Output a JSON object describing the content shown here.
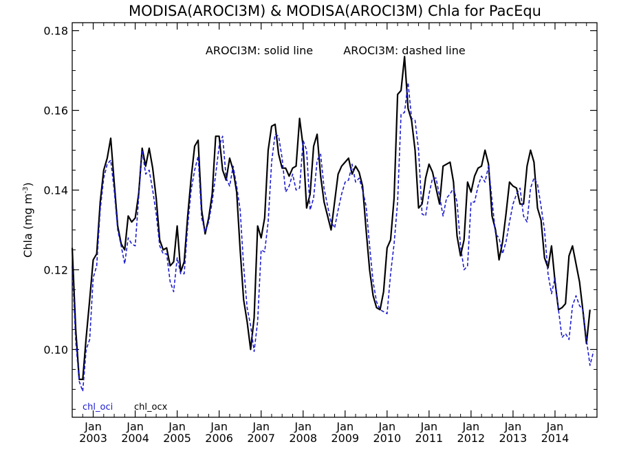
{
  "chart_data": {
    "type": "line",
    "title": "MODISA(AROCI3M) & MODISA(AROCI3M)  Chla for PacEqu",
    "annotation_solid": "AROCI3M: solid line",
    "annotation_dashed": "AROCI3M: dashed line",
    "ylabel_base": "Chla (mg m",
    "ylabel_exp": "-3",
    "ylabel_close": ")",
    "xlabel": "",
    "ylim": [
      0.083,
      0.182
    ],
    "xlim": [
      2002.5,
      2015.0
    ],
    "y_ticks": [
      0.1,
      0.12,
      0.14,
      0.16,
      0.18
    ],
    "y_tick_labels": [
      "0.10",
      "0.12",
      "0.14",
      "0.16",
      "0.18"
    ],
    "x_ticks": [
      {
        "month": "Jan",
        "year": "2003",
        "value": 2003
      },
      {
        "month": "Jan",
        "year": "2004",
        "value": 2004
      },
      {
        "month": "Jan",
        "year": "2005",
        "value": 2005
      },
      {
        "month": "Jan",
        "year": "2006",
        "value": 2006
      },
      {
        "month": "Jan",
        "year": "2007",
        "value": 2007
      },
      {
        "month": "Jan",
        "year": "2008",
        "value": 2008
      },
      {
        "month": "Jan",
        "year": "2009",
        "value": 2009
      },
      {
        "month": "Jan",
        "year": "2010",
        "value": 2010
      },
      {
        "month": "Jan",
        "year": "2011",
        "value": 2011
      },
      {
        "month": "Jan",
        "year": "2012",
        "value": 2012
      },
      {
        "month": "Jan",
        "year": "2013",
        "value": 2013
      },
      {
        "month": "Jan",
        "year": "2014",
        "value": 2014
      }
    ],
    "grid": false,
    "legend": "bottom-left",
    "x_start": "2002-07",
    "series": [
      {
        "name": "chl_oci",
        "color": "#1a1ad0",
        "style": "dashed",
        "values": [
          0.121,
          0.102,
          0.092,
          0.0895,
          0.1,
          0.1025,
          0.118,
          0.121,
          0.135,
          0.143,
          0.1465,
          0.1475,
          0.14,
          0.13,
          0.126,
          0.1215,
          0.128,
          0.1265,
          0.126,
          0.138,
          0.15,
          0.144,
          0.145,
          0.14,
          0.134,
          0.126,
          0.124,
          0.124,
          0.117,
          0.1145,
          0.123,
          0.119,
          0.119,
          0.131,
          0.14,
          0.145,
          0.1485,
          0.133,
          0.1295,
          0.132,
          0.137,
          0.144,
          0.151,
          0.1535,
          0.143,
          0.141,
          0.146,
          0.141,
          0.135,
          0.121,
          0.1105,
          0.106,
          0.0995,
          0.107,
          0.125,
          0.1245,
          0.132,
          0.147,
          0.154,
          0.1535,
          0.148,
          0.1395,
          0.141,
          0.144,
          0.14,
          0.1405,
          0.1525,
          0.15,
          0.135,
          0.138,
          0.1475,
          0.149,
          0.1405,
          0.136,
          0.132,
          0.1305,
          0.135,
          0.139,
          0.142,
          0.1425,
          0.1465,
          0.142,
          0.143,
          0.14,
          0.136,
          0.126,
          0.117,
          0.112,
          0.11,
          0.1095,
          0.109,
          0.119,
          0.1265,
          0.137,
          0.159,
          0.1595,
          0.167,
          0.158,
          0.1575,
          0.15,
          0.134,
          0.1335,
          0.139,
          0.143,
          0.143,
          0.1385,
          0.1335,
          0.138,
          0.139,
          0.1405,
          0.137,
          0.126,
          0.12,
          0.121,
          0.137,
          0.137,
          0.141,
          0.1435,
          0.142,
          0.146,
          0.1375,
          0.129,
          0.128,
          0.124,
          0.127,
          0.132,
          0.1365,
          0.139,
          0.1405,
          0.1335,
          0.132,
          0.1405,
          0.143,
          0.1415,
          0.136,
          0.13,
          0.119,
          0.114,
          0.118,
          0.11,
          0.103,
          0.104,
          0.1025,
          0.111,
          0.1135,
          0.111,
          0.11,
          0.1025,
          0.096,
          0.0995
        ]
      },
      {
        "name": "chl_ocx",
        "color": "#000000",
        "style": "solid",
        "values": [
          0.1255,
          0.105,
          0.0925,
          0.0925,
          0.103,
          0.1125,
          0.1225,
          0.124,
          0.137,
          0.145,
          0.148,
          0.153,
          0.142,
          0.131,
          0.1265,
          0.125,
          0.1335,
          0.132,
          0.133,
          0.139,
          0.1505,
          0.146,
          0.1505,
          0.1455,
          0.138,
          0.1275,
          0.125,
          0.1255,
          0.121,
          0.122,
          0.131,
          0.1195,
          0.122,
          0.1335,
          0.143,
          0.151,
          0.1525,
          0.135,
          0.129,
          0.133,
          0.139,
          0.1535,
          0.1535,
          0.145,
          0.1425,
          0.148,
          0.145,
          0.1395,
          0.125,
          0.1125,
          0.107,
          0.1,
          0.108,
          0.131,
          0.128,
          0.133,
          0.15,
          0.156,
          0.1565,
          0.149,
          0.1455,
          0.1455,
          0.1435,
          0.1455,
          0.146,
          0.158,
          0.151,
          0.1355,
          0.139,
          0.151,
          0.154,
          0.1435,
          0.137,
          0.1335,
          0.13,
          0.137,
          0.144,
          0.146,
          0.147,
          0.148,
          0.144,
          0.146,
          0.1445,
          0.141,
          0.13,
          0.12,
          0.1135,
          0.1105,
          0.11,
          0.1145,
          0.1255,
          0.1275,
          0.138,
          0.164,
          0.165,
          0.1735,
          0.1605,
          0.1575,
          0.15,
          0.1355,
          0.1365,
          0.143,
          0.1465,
          0.1445,
          0.1405,
          0.1365,
          0.146,
          0.1465,
          0.147,
          0.142,
          0.1285,
          0.1235,
          0.1275,
          0.142,
          0.1395,
          0.1435,
          0.1455,
          0.146,
          0.15,
          0.1465,
          0.1335,
          0.13,
          0.1225,
          0.127,
          0.134,
          0.142,
          0.141,
          0.1405,
          0.1365,
          0.1365,
          0.146,
          0.15,
          0.147,
          0.1355,
          0.1325,
          0.123,
          0.1205,
          0.126,
          0.117,
          0.11,
          0.1105,
          0.1115,
          0.1235,
          0.126,
          0.1215,
          0.117,
          0.1095,
          0.1015,
          0.11
        ]
      }
    ]
  }
}
